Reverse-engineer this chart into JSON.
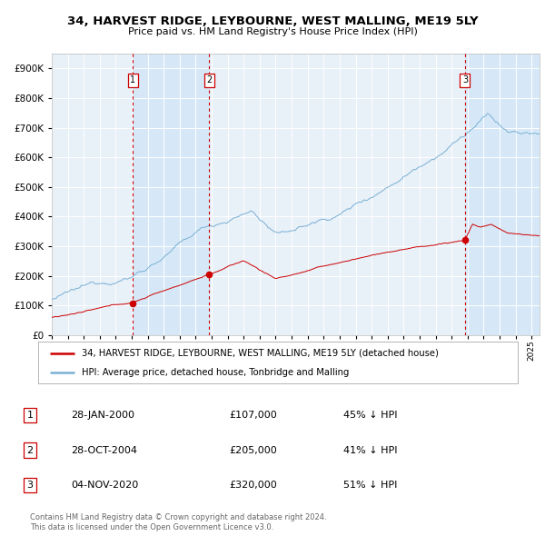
{
  "title": "34, HARVEST RIDGE, LEYBOURNE, WEST MALLING, ME19 5LY",
  "subtitle": "Price paid vs. HM Land Registry's House Price Index (HPI)",
  "legend_label_red": "34, HARVEST RIDGE, LEYBOURNE, WEST MALLING, ME19 5LY (detached house)",
  "legend_label_blue": "HPI: Average price, detached house, Tonbridge and Malling",
  "footer1": "Contains HM Land Registry data © Crown copyright and database right 2024.",
  "footer2": "This data is licensed under the Open Government Licence v3.0.",
  "transactions": [
    {
      "num": 1,
      "date": "28-JAN-2000",
      "price": 107000,
      "pct": "45% ↓ HPI",
      "year": 2000.07
    },
    {
      "num": 2,
      "date": "28-OCT-2004",
      "price": 205000,
      "pct": "41% ↓ HPI",
      "year": 2004.83
    },
    {
      "num": 3,
      "date": "04-NOV-2020",
      "price": 320000,
      "pct": "51% ↓ HPI",
      "year": 2020.84
    }
  ],
  "background_color": "#ffffff",
  "chart_bg": "#e8f0f8",
  "grid_color": "#ffffff",
  "highlight_color": "#d6e8f7",
  "red_color": "#cc0000",
  "blue_color": "#7ab0d4",
  "dashed_color": "#cc0000",
  "ylim": [
    0,
    950000
  ],
  "xlim_start": 1995.0,
  "xlim_end": 2025.5
}
